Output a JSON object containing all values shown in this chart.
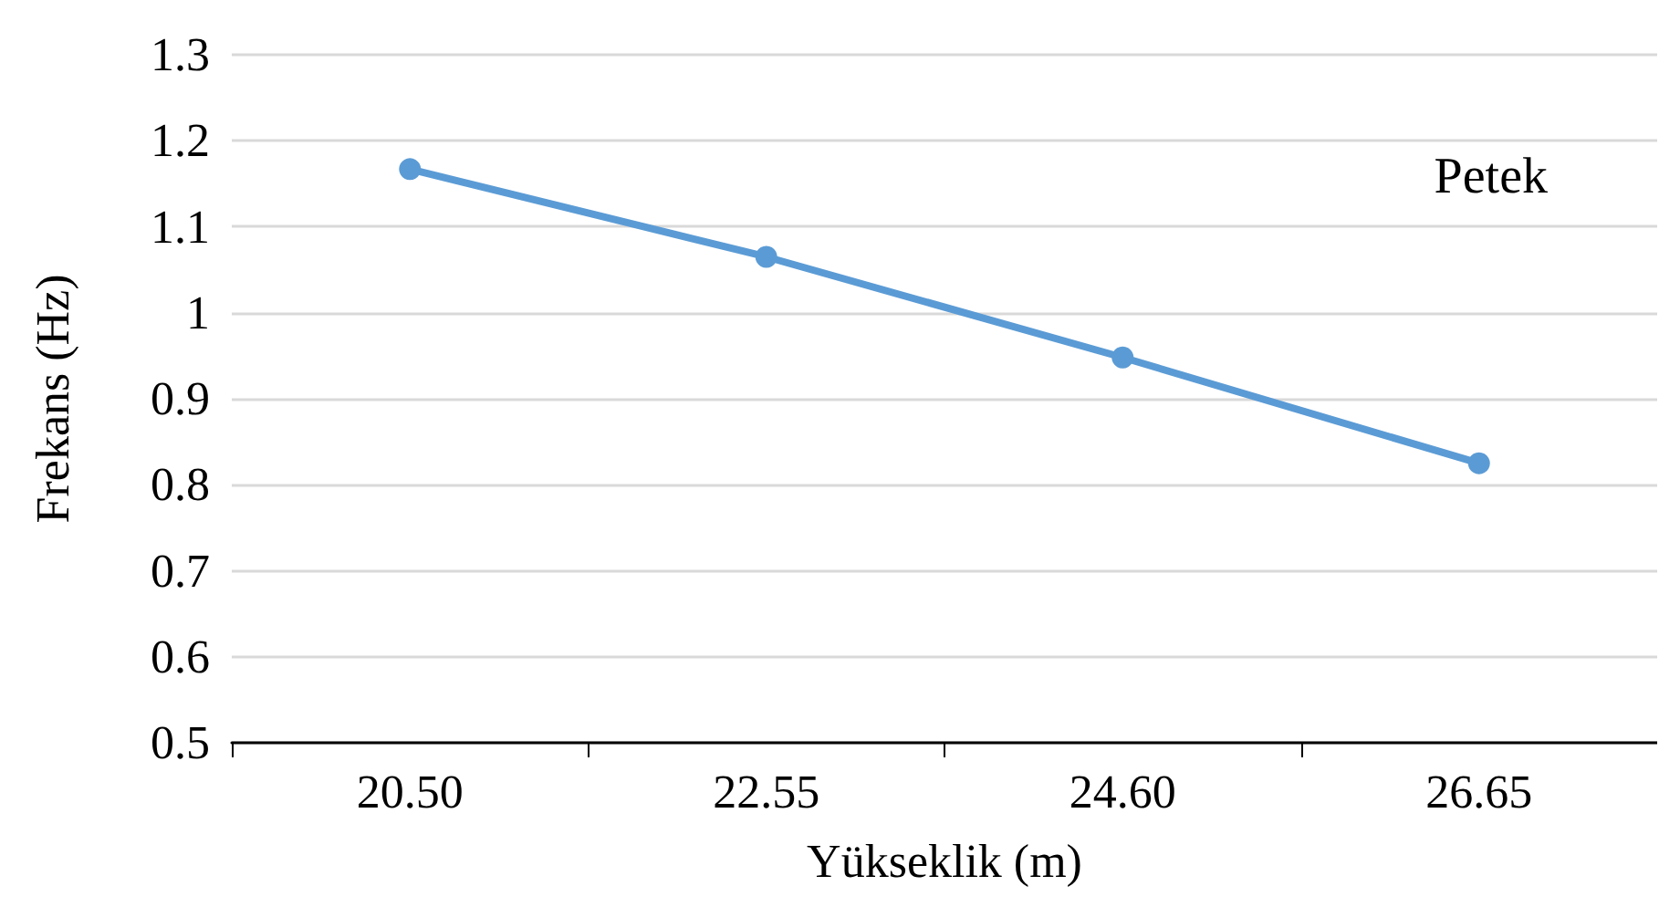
{
  "chart_data": {
    "type": "line",
    "xlabel": "Yükseklik (m)",
    "ylabel": "Frekans (Hz)",
    "categories": [
      "20.50",
      "22.55",
      "24.60",
      "26.65"
    ],
    "series": [
      {
        "color": "#5b9bd5",
        "values": [
          1.167,
          1.065,
          0.948,
          0.825
        ]
      }
    ],
    "ylim": [
      0.5,
      1.3
    ],
    "yticks": [
      0.5,
      0.6,
      0.7,
      0.8,
      0.9,
      1,
      1.1,
      1.2,
      1.3
    ],
    "grid": "y",
    "marker": "circle",
    "line_style": "solid",
    "annotations": [
      "Petek"
    ]
  }
}
